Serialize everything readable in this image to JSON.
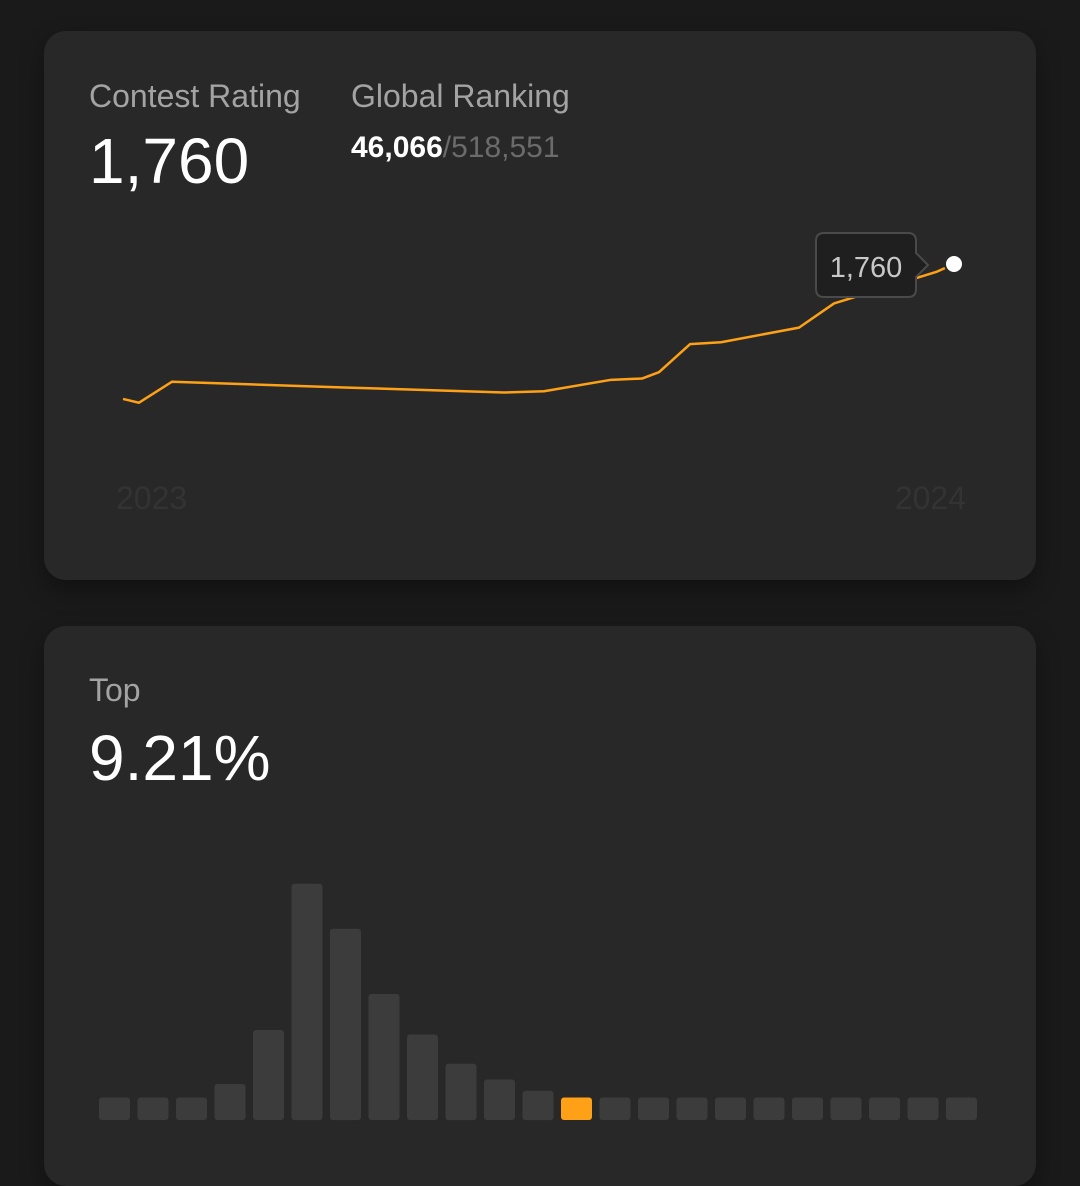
{
  "rating_card": {
    "label": "Contest Rating",
    "value": "1,760",
    "ranking_label": "Global Ranking",
    "ranking_current": "46,066",
    "ranking_separator": "/",
    "ranking_total": "518,551",
    "tooltip_value": "1,760",
    "chart_data": {
      "type": "line",
      "x_tick_labels": [
        "2023",
        "2024"
      ],
      "series": [
        {
          "color": "#ffa116",
          "values": [
            1548,
            1542,
            1575,
            1566,
            1558,
            1560,
            1578,
            1580,
            1590,
            1634,
            1637,
            1660,
            1698,
            1748,
            1760
          ]
        }
      ]
    }
  },
  "top_card": {
    "label": "Top",
    "value": "9.21%",
    "chart_data": {
      "type": "bar",
      "highlight_color": "#ffa116",
      "bar_color": "#3c3c3c",
      "highlight_index": 12,
      "values": [
        1,
        1,
        1,
        1.6,
        4,
        10.5,
        8.5,
        5.6,
        3.8,
        2.5,
        1.8,
        1.3,
        1,
        1,
        1,
        1,
        1,
        1,
        1,
        1,
        1,
        1,
        1
      ]
    }
  }
}
